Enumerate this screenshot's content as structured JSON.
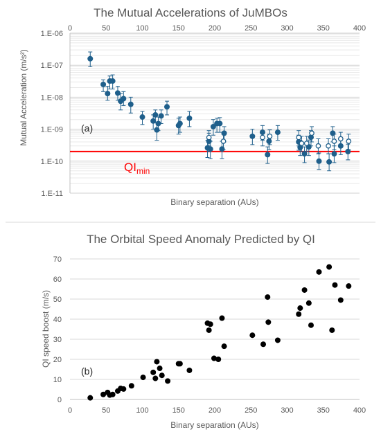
{
  "chart_data": [
    {
      "type": "scatter",
      "panel_label": "(a)",
      "title": "The Mutual Accelerations of JuMBOs",
      "xlabel": "Binary separation (AUs)",
      "ylabel": "Mutual Acceleration (m/s²)",
      "xlim": [
        0,
        400
      ],
      "ylim": [
        1e-11,
        1e-06
      ],
      "y_scale": "log",
      "x_ticks": [
        "0",
        "50",
        "100",
        "150",
        "200",
        "250",
        "300",
        "350",
        "400"
      ],
      "y_ticks": [
        "1.E-06",
        "1.E-07",
        "1.E-08",
        "1.E-09",
        "1.E-10",
        "1.E-11"
      ],
      "x_axis_position": "top",
      "grid": "horizontal minor",
      "threshold": {
        "value": 2e-10,
        "label": "QI",
        "label_sub": "min",
        "color": "#ff0000"
      },
      "marker_color": "#1f5f8b",
      "series": [
        {
          "marker": "filled",
          "points": [
            {
              "x": 28,
              "y": 1.6e-07,
              "lo": 9e-08,
              "hi": 2.6e-07
            },
            {
              "x": 46,
              "y": 2.5e-08,
              "lo": 1.5e-08,
              "hi": 3.5e-08
            },
            {
              "x": 52,
              "y": 1.3e-08,
              "lo": 8e-09,
              "hi": 2.2e-08
            },
            {
              "x": 55,
              "y": 3.2e-08,
              "lo": 1.8e-08,
              "hi": 4.6e-08
            },
            {
              "x": 59,
              "y": 3.2e-08,
              "lo": 1.8e-08,
              "hi": 5e-08
            },
            {
              "x": 66,
              "y": 1.35e-08,
              "lo": 8e-09,
              "hi": 2.2e-08
            },
            {
              "x": 70,
              "y": 7.5e-09,
              "lo": 4e-09,
              "hi": 1.3e-08
            },
            {
              "x": 74,
              "y": 9e-09,
              "lo": 5.5e-09,
              "hi": 1.5e-08
            },
            {
              "x": 84,
              "y": 6e-09,
              "lo": 3.2e-09,
              "hi": 1e-08
            },
            {
              "x": 100,
              "y": 2.4e-09,
              "lo": 1.4e-09,
              "hi": 3.6e-09
            },
            {
              "x": 115,
              "y": 1.8e-09,
              "lo": 1e-09,
              "hi": 2.8e-09
            },
            {
              "x": 118,
              "y": 2.8e-09,
              "lo": 1.6e-09,
              "hi": 4e-09
            },
            {
              "x": 120,
              "y": 9.5e-10,
              "lo": 4.5e-10,
              "hi": 1.6e-09
            },
            {
              "x": 122,
              "y": 1.5e-09,
              "lo": 9e-10,
              "hi": 2.4e-09
            },
            {
              "x": 126,
              "y": 2.6e-09,
              "lo": 1.5e-09,
              "hi": 4e-09
            },
            {
              "x": 134,
              "y": 5e-09,
              "lo": 2.8e-09,
              "hi": 7.5e-09
            },
            {
              "x": 150,
              "y": 1.3e-09,
              "lo": 7e-10,
              "hi": 2.2e-09
            },
            {
              "x": 152,
              "y": 1.5e-09,
              "lo": 8e-10,
              "hi": 2.4e-09
            },
            {
              "x": 165,
              "y": 2.2e-09,
              "lo": 1.2e-09,
              "hi": 3.6e-09
            },
            {
              "x": 190,
              "y": 2.6e-10,
              "lo": 1.3e-10,
              "hi": 4.5e-10
            },
            {
              "x": 192,
              "y": 4.2e-10,
              "lo": 2e-10,
              "hi": 7.5e-10
            },
            {
              "x": 194,
              "y": 2.4e-10,
              "lo": 1.2e-10,
              "hi": 4.2e-10
            },
            {
              "x": 198,
              "y": 1.2e-09,
              "lo": 6.5e-10,
              "hi": 2e-09
            },
            {
              "x": 203,
              "y": 1.5e-09,
              "lo": 8e-10,
              "hi": 2.2e-09
            },
            {
              "x": 207,
              "y": 1.5e-09,
              "lo": 8e-10,
              "hi": 2.3e-09
            },
            {
              "x": 210,
              "y": 2.4e-10,
              "lo": 1.2e-10,
              "hi": 4.2e-10
            },
            {
              "x": 213,
              "y": 7.5e-10,
              "lo": 4e-10,
              "hi": 1.2e-09
            },
            {
              "x": 252,
              "y": 6e-10,
              "lo": 3.3e-10,
              "hi": 1e-09
            },
            {
              "x": 266,
              "y": 8e-10,
              "lo": 4.5e-10,
              "hi": 1.3e-09
            },
            {
              "x": 273,
              "y": 1.6e-10,
              "lo": 8.5e-11,
              "hi": 2.8e-10
            },
            {
              "x": 275,
              "y": 4.2e-10,
              "lo": 2.3e-10,
              "hi": 7e-10
            },
            {
              "x": 287,
              "y": 8e-10,
              "lo": 4.5e-10,
              "hi": 1.3e-09
            },
            {
              "x": 316,
              "y": 4e-10,
              "lo": 2.2e-10,
              "hi": 6.5e-10
            },
            {
              "x": 318,
              "y": 2.7e-10,
              "lo": 1.5e-10,
              "hi": 4.5e-10
            },
            {
              "x": 324,
              "y": 1.7e-10,
              "lo": 9e-11,
              "hi": 2.8e-10
            },
            {
              "x": 330,
              "y": 2.8e-10,
              "lo": 1.5e-10,
              "hi": 4.6e-10
            },
            {
              "x": 333,
              "y": 5.6e-10,
              "lo": 3e-10,
              "hi": 9e-10
            },
            {
              "x": 344,
              "y": 1e-10,
              "lo": 5.5e-11,
              "hi": 1.8e-10
            },
            {
              "x": 358,
              "y": 9.5e-11,
              "lo": 5e-11,
              "hi": 1.7e-10
            },
            {
              "x": 363,
              "y": 7.5e-10,
              "lo": 4e-10,
              "hi": 1.2e-09
            },
            {
              "x": 365,
              "y": 1.7e-10,
              "lo": 9e-11,
              "hi": 3e-10
            },
            {
              "x": 374,
              "y": 3e-10,
              "lo": 1.6e-10,
              "hi": 5e-10
            },
            {
              "x": 384,
              "y": 2e-10,
              "lo": 1.1e-10,
              "hi": 3.4e-10
            }
          ]
        },
        {
          "marker": "open",
          "points": [
            {
              "x": 192,
              "y": 5.5e-10,
              "lo": 3e-10,
              "hi": 9e-10
            },
            {
              "x": 212,
              "y": 4.2e-10,
              "lo": 2.3e-10,
              "hi": 7e-10
            },
            {
              "x": 266,
              "y": 5.5e-10,
              "lo": 3e-10,
              "hi": 9e-10
            },
            {
              "x": 276,
              "y": 6e-10,
              "lo": 3.3e-10,
              "hi": 9.5e-10
            },
            {
              "x": 316,
              "y": 5.5e-10,
              "lo": 3e-10,
              "hi": 9e-10
            },
            {
              "x": 320,
              "y": 3.6e-10,
              "lo": 2e-10,
              "hi": 6e-10
            },
            {
              "x": 327,
              "y": 3.6e-10,
              "lo": 2e-10,
              "hi": 6e-10
            },
            {
              "x": 334,
              "y": 7.5e-10,
              "lo": 4e-10,
              "hi": 1.2e-09
            },
            {
              "x": 343,
              "y": 3e-10,
              "lo": 1.7e-10,
              "hi": 5e-10
            },
            {
              "x": 357,
              "y": 3e-10,
              "lo": 1.7e-10,
              "hi": 5e-10
            },
            {
              "x": 365,
              "y": 4.2e-10,
              "lo": 2.3e-10,
              "hi": 7e-10
            },
            {
              "x": 374,
              "y": 5e-10,
              "lo": 2.8e-10,
              "hi": 8e-10
            },
            {
              "x": 385,
              "y": 4.2e-10,
              "lo": 2.3e-10,
              "hi": 7e-10
            }
          ]
        }
      ]
    },
    {
      "type": "scatter",
      "panel_label": "(b)",
      "title": "The Orbital Speed Anomaly Predicted by QI",
      "xlabel": "Binary separation (AUs)",
      "ylabel": "QI speed boost (m/s)",
      "xlim": [
        0,
        400
      ],
      "ylim": [
        0,
        70
      ],
      "x_ticks": [
        "0",
        "50",
        "100",
        "150",
        "200",
        "250",
        "300",
        "350",
        "400"
      ],
      "y_ticks": [
        "0",
        "10",
        "20",
        "30",
        "40",
        "50",
        "60",
        "70"
      ],
      "grid": "horizontal",
      "marker_color": "#000000",
      "points": [
        {
          "x": 28,
          "y": 0.8
        },
        {
          "x": 46,
          "y": 2.5
        },
        {
          "x": 52,
          "y": 3.5
        },
        {
          "x": 55,
          "y": 2.2
        },
        {
          "x": 59,
          "y": 2.5
        },
        {
          "x": 66,
          "y": 4.2
        },
        {
          "x": 70,
          "y": 5.5
        },
        {
          "x": 74,
          "y": 5.2
        },
        {
          "x": 85,
          "y": 6.8
        },
        {
          "x": 101,
          "y": 11
        },
        {
          "x": 115,
          "y": 13.5
        },
        {
          "x": 118,
          "y": 10.5
        },
        {
          "x": 120,
          "y": 18.8
        },
        {
          "x": 124,
          "y": 15.5
        },
        {
          "x": 127,
          "y": 12
        },
        {
          "x": 135,
          "y": 9.2
        },
        {
          "x": 150,
          "y": 17.8
        },
        {
          "x": 152,
          "y": 17.8
        },
        {
          "x": 165,
          "y": 14.5
        },
        {
          "x": 190,
          "y": 38
        },
        {
          "x": 192,
          "y": 34.5
        },
        {
          "x": 194,
          "y": 37.5
        },
        {
          "x": 199,
          "y": 20.5
        },
        {
          "x": 205,
          "y": 20
        },
        {
          "x": 210,
          "y": 40.5
        },
        {
          "x": 213,
          "y": 26.5
        },
        {
          "x": 252,
          "y": 32
        },
        {
          "x": 267,
          "y": 27.5
        },
        {
          "x": 273,
          "y": 51
        },
        {
          "x": 274,
          "y": 38.5
        },
        {
          "x": 287,
          "y": 29.5
        },
        {
          "x": 316,
          "y": 42.5
        },
        {
          "x": 318,
          "y": 45.5
        },
        {
          "x": 324,
          "y": 54.5
        },
        {
          "x": 330,
          "y": 48
        },
        {
          "x": 333,
          "y": 37
        },
        {
          "x": 344,
          "y": 63.5
        },
        {
          "x": 358,
          "y": 66
        },
        {
          "x": 362,
          "y": 34.5
        },
        {
          "x": 366,
          "y": 57
        },
        {
          "x": 374,
          "y": 49.5
        },
        {
          "x": 385,
          "y": 56.5
        }
      ]
    }
  ]
}
